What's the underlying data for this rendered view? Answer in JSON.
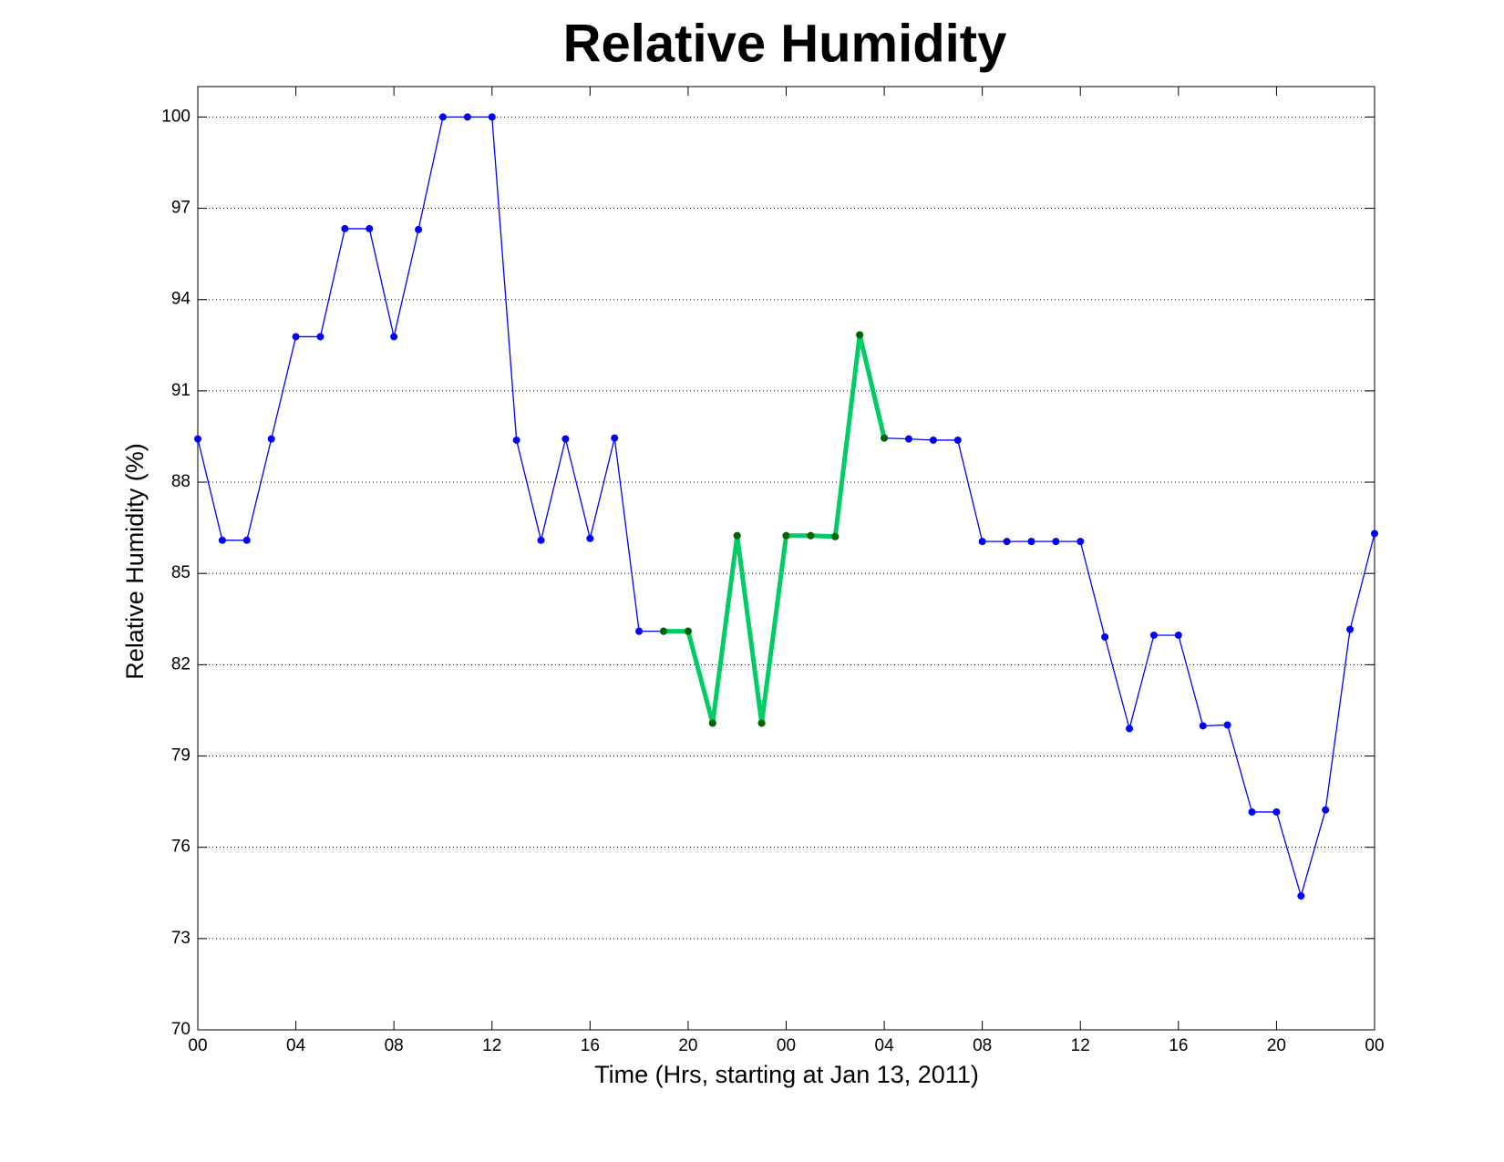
{
  "chart_data": {
    "type": "line",
    "title": "Relative Humidity",
    "x_label": "Time (Hrs, starting at Jan 13, 2011)",
    "y_label": "Relative Humidity (%)",
    "x": [
      0,
      1,
      2,
      3,
      4,
      5,
      6,
      7,
      8,
      9,
      10,
      11,
      12,
      13,
      14,
      15,
      16,
      17,
      18,
      19,
      20,
      21,
      22,
      23,
      24,
      25,
      26,
      27,
      28,
      29,
      30,
      31,
      32,
      33,
      34,
      35,
      36,
      37,
      38,
      39,
      40,
      41,
      42,
      43,
      44,
      45,
      46,
      47,
      48
    ],
    "series": [
      {
        "color": "#0000ff",
        "marker_color": "#0000ff",
        "values": [
          89.42,
          86.09,
          86.09,
          89.42,
          92.78,
          92.78,
          96.33,
          96.33,
          92.78,
          96.3,
          100,
          100,
          100,
          89.38,
          86.09,
          89.42,
          86.15,
          89.45,
          83.1,
          83.1,
          83.1,
          80.08,
          86.24,
          80.08,
          86.24,
          86.24,
          86.21,
          92.84,
          89.45,
          89.42,
          89.38,
          89.38,
          86.05,
          86.05,
          86.05,
          86.05,
          86.05,
          82.91,
          79.9,
          82.97,
          82.97,
          79.99,
          80.02,
          77.16,
          77.16,
          74.4,
          77.23,
          83.16,
          86.31
        ]
      },
      {
        "color": "#00cc66",
        "marker_color": "#006600",
        "values": [
          null,
          null,
          null,
          null,
          null,
          null,
          null,
          null,
          null,
          null,
          null,
          null,
          null,
          null,
          null,
          null,
          null,
          null,
          null,
          83.1,
          83.1,
          80.08,
          86.24,
          80.08,
          86.24,
          86.24,
          86.21,
          92.84,
          89.45,
          null,
          null,
          null,
          null,
          null,
          null,
          null,
          null,
          null,
          null,
          null,
          null,
          null,
          null,
          null,
          null,
          null,
          null,
          null,
          null
        ]
      }
    ],
    "xlim": [
      0,
      48
    ],
    "xticks": [
      {
        "value": 0,
        "label": "00"
      },
      {
        "value": 4,
        "label": "04"
      },
      {
        "value": 8,
        "label": "08"
      },
      {
        "value": 12,
        "label": "12"
      },
      {
        "value": 16,
        "label": "16"
      },
      {
        "value": 20,
        "label": "20"
      },
      {
        "value": 24,
        "label": "00"
      },
      {
        "value": 28,
        "label": "04"
      },
      {
        "value": 32,
        "label": "08"
      },
      {
        "value": 36,
        "label": "12"
      },
      {
        "value": 40,
        "label": "16"
      },
      {
        "value": 44,
        "label": "20"
      },
      {
        "value": 48,
        "label": "00"
      }
    ],
    "ylim": [
      70,
      101
    ],
    "yticks": [
      70,
      73,
      76,
      79,
      82,
      85,
      88,
      91,
      94,
      97,
      100
    ],
    "grid": "y"
  }
}
